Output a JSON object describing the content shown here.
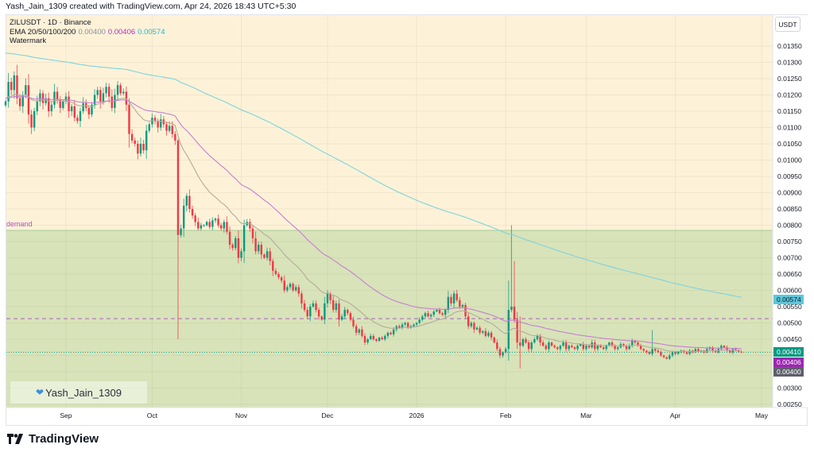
{
  "header": {
    "created_line": "Yash_Jain_1309 created with TradingView.com, Apr 24, 2026 18:43 UTC+5:30"
  },
  "legend": {
    "symbol_line": "ZILUSDT · 1D · Binance",
    "ema_label": "EMA 20/50/100/200",
    "ema_values": [
      "0.00400",
      "0.00406",
      "0.00574"
    ],
    "watermark_label": "Watermark"
  },
  "currency_button": "USDT",
  "zone_label": "demand",
  "watermark": {
    "text": "Yash_Jain_1309",
    "icon": "blue-heart-icon"
  },
  "footer": {
    "brand": "TradingView"
  },
  "colors": {
    "up": "#089981",
    "down": "#f23645",
    "ema20": "#b5ab9b",
    "ema50": "#c47fd3",
    "ema200": "#7fd3dc",
    "background": "#fdf2d8",
    "zone": "#d8e3b9",
    "last_price": "#089981"
  },
  "chart_data": {
    "type": "candlestick",
    "symbol": "ZILUSDT",
    "interval": "1D",
    "start_date": "2025-08-11",
    "ylim": [
      0.0023,
      0.014
    ],
    "y_ticks": [
      "0.01350",
      "0.01300",
      "0.01250",
      "0.01200",
      "0.01150",
      "0.01100",
      "0.01050",
      "0.01000",
      "0.00950",
      "0.00900",
      "0.00850",
      "0.00800",
      "0.00750",
      "0.00700",
      "0.00650",
      "0.00600",
      "0.00550",
      "0.00500",
      "0.00450",
      "0.00300",
      "0.00250"
    ],
    "x_ticks": [
      {
        "label": "Sep",
        "date": "2025-09-01"
      },
      {
        "label": "Oct",
        "date": "2025-10-01"
      },
      {
        "label": "Nov",
        "date": "2025-11-01"
      },
      {
        "label": "Dec",
        "date": "2025-12-01"
      },
      {
        "label": "2026",
        "date": "2026-01-01"
      },
      {
        "label": "Feb",
        "date": "2026-02-01"
      },
      {
        "label": "Mar",
        "date": "2026-03-01"
      },
      {
        "label": "Apr",
        "date": "2026-04-01"
      },
      {
        "label": "May",
        "date": "2026-05-01"
      }
    ],
    "closes": [
      0.0118,
      0.0124,
      0.01215,
      0.0126,
      0.0119,
      0.01165,
      0.012,
      0.0123,
      0.0114,
      0.011,
      0.0115,
      0.0118,
      0.01205,
      0.01175,
      0.0119,
      0.0115,
      0.0117,
      0.0121,
      0.01185,
      0.0116,
      0.0118,
      0.01195,
      0.0115,
      0.01165,
      0.0113,
      0.0112,
      0.0115,
      0.01175,
      0.0116,
      0.0114,
      0.0117,
      0.012,
      0.01215,
      0.0118,
      0.01205,
      0.01225,
      0.01195,
      0.0116,
      0.012,
      0.0123,
      0.01205,
      0.0121,
      0.0117,
      0.0108,
      0.0106,
      0.0105,
      0.0102,
      0.0105,
      0.0103,
      0.0109,
      0.0111,
      0.0113,
      0.0112,
      0.011,
      0.01125,
      0.0111,
      0.0109,
      0.01105,
      0.0108,
      0.0106,
      0.0077,
      0.0079,
      0.0086,
      0.0089,
      0.0085,
      0.0083,
      0.0081,
      0.0079,
      0.008,
      0.008,
      0.0081,
      0.00795,
      0.00815,
      0.0082,
      0.008,
      0.0079,
      0.0081,
      0.0078,
      0.0074,
      0.0073,
      0.0076,
      0.007,
      0.0072,
      0.008,
      0.0081,
      0.0079,
      0.0076,
      0.0072,
      0.0074,
      0.0071,
      0.007,
      0.0072,
      0.0069,
      0.0066,
      0.0065,
      0.0064,
      0.0063,
      0.006,
      0.0061,
      0.0062,
      0.006,
      0.0061,
      0.0059,
      0.0056,
      0.0054,
      0.0052,
      0.0055,
      0.0056,
      0.0054,
      0.0052,
      0.0051,
      0.0056,
      0.0059,
      0.0057,
      0.0054,
      0.0056,
      0.0051,
      0.0052,
      0.0054,
      0.0053,
      0.0051,
      0.0049,
      0.0047,
      0.0048,
      0.0046,
      0.0044,
      0.0045,
      0.0046,
      0.0045,
      0.00445,
      0.00455,
      0.0045,
      0.0046,
      0.0047,
      0.00465,
      0.0048,
      0.0049,
      0.00485,
      0.00495,
      0.005,
      0.00485,
      0.0049,
      0.00495,
      0.005,
      0.0051,
      0.0052,
      0.0053,
      0.0052,
      0.00525,
      0.00535,
      0.0054,
      0.0053,
      0.00525,
      0.0054,
      0.0058,
      0.0056,
      0.0059,
      0.0057,
      0.0055,
      0.00555,
      0.0052,
      0.0049,
      0.005,
      0.0048,
      0.00485,
      0.0047,
      0.00475,
      0.0046,
      0.0047,
      0.00455,
      0.0044,
      0.0042,
      0.004,
      0.0041,
      0.0042,
      0.0054,
      0.0055,
      0.0051,
      0.0044,
      0.0043,
      0.0045,
      0.0044,
      0.0042,
      0.0044,
      0.0045,
      0.0046,
      0.0044,
      0.0043,
      0.0042,
      0.0044,
      0.0043,
      0.00425,
      0.0042,
      0.0043,
      0.0044,
      0.0042,
      0.0043,
      0.00425,
      0.0042,
      0.0043,
      0.00435,
      0.0042,
      0.0043,
      0.00425,
      0.0044,
      0.0042,
      0.0043,
      0.00425,
      0.0042,
      0.0043,
      0.0044,
      0.0043,
      0.0042,
      0.00425,
      0.00435,
      0.0043,
      0.0042,
      0.0043,
      0.00445,
      0.0044,
      0.0043,
      0.0042,
      0.00415,
      0.0041,
      0.00405,
      0.0042,
      0.00415,
      0.0041,
      0.004,
      0.00395,
      0.0039,
      0.004,
      0.0041,
      0.00405,
      0.0041,
      0.00415,
      0.0041,
      0.00405,
      0.00415,
      0.0041,
      0.0042,
      0.00412,
      0.00415,
      0.0041,
      0.0042,
      0.00425,
      0.00415,
      0.0041,
      0.0042,
      0.0043,
      0.00425,
      0.00415,
      0.0041,
      0.0042,
      0.00415,
      0.00412,
      0.0041
    ],
    "wick_overrides": [
      {
        "date": "2025-10-10",
        "high": 0.01065,
        "low": 0.0045
      },
      {
        "date": "2026-02-02",
        "high": 0.0063
      },
      {
        "date": "2026-02-03",
        "high": 0.008
      },
      {
        "date": "2026-02-04",
        "high": 0.0069
      },
      {
        "date": "2026-02-06",
        "high": 0.0052,
        "low": 0.0036
      },
      {
        "date": "2026-03-24",
        "high": 0.00478
      }
    ],
    "zones": [
      {
        "label": "demand",
        "top": 0.00784,
        "bottom": 0.0023
      }
    ],
    "lines": [
      {
        "style": "dashed",
        "price": 0.00513,
        "color": "#a861c2"
      },
      {
        "style": "dotted",
        "price": 0.0041,
        "color": "#089981"
      }
    ],
    "price_tags": [
      {
        "value": "0.00574",
        "color": "#5cc8dc"
      },
      {
        "value": "0.00410",
        "color": "#089981"
      },
      {
        "value": "0.00406",
        "color": "#9c27b0"
      },
      {
        "value": "0.00400",
        "color": "#5d606b"
      }
    ],
    "ema_periods": [
      20,
      50,
      200
    ],
    "grid": true
  }
}
